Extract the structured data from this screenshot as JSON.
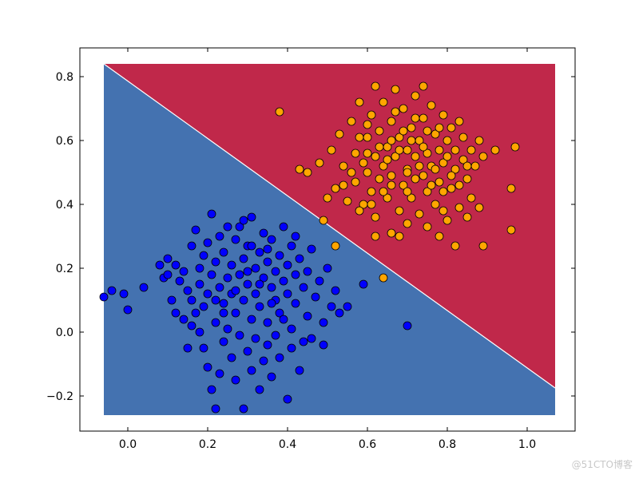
{
  "chart_data": {
    "type": "scatter",
    "title": "",
    "xlabel": "",
    "ylabel": "",
    "xlim": [
      -0.12,
      1.12
    ],
    "ylim": [
      -0.31,
      0.89
    ],
    "x_ticks": [
      0.0,
      0.2,
      0.4,
      0.6,
      0.8,
      1.0
    ],
    "x_tick_labels": [
      "0.0",
      "0.2",
      "0.4",
      "0.6",
      "0.8",
      "1.0"
    ],
    "y_ticks": [
      -0.2,
      0.0,
      0.2,
      0.4,
      0.6,
      0.8
    ],
    "y_tick_labels": [
      "−0.2",
      "0.0",
      "0.2",
      "0.4",
      "0.6",
      "0.8"
    ],
    "grid": false,
    "legend": "none",
    "decision_regions": {
      "x_range": [
        -0.06,
        1.07
      ],
      "y_range": [
        -0.26,
        0.84
      ],
      "boundary": [
        [
          -0.06,
          0.84
        ],
        [
          1.07,
          -0.175
        ]
      ],
      "upper_region_color": "#c0284a",
      "lower_region_color": "#4472b0"
    },
    "series": [
      {
        "color": "#0000ff",
        "edge_color": "#000000",
        "points": [
          [
            -0.06,
            0.11
          ],
          [
            -0.04,
            0.13
          ],
          [
            -0.01,
            0.12
          ],
          [
            0.0,
            0.07
          ],
          [
            0.04,
            0.14
          ],
          [
            0.08,
            0.21
          ],
          [
            0.09,
            0.17
          ],
          [
            0.1,
            0.23
          ],
          [
            0.1,
            0.18
          ],
          [
            0.11,
            0.1
          ],
          [
            0.12,
            0.06
          ],
          [
            0.12,
            0.21
          ],
          [
            0.13,
            0.16
          ],
          [
            0.14,
            0.04
          ],
          [
            0.14,
            0.19
          ],
          [
            0.15,
            0.13
          ],
          [
            0.16,
            0.1
          ],
          [
            0.16,
            0.27
          ],
          [
            0.17,
            0.06
          ],
          [
            0.17,
            0.32
          ],
          [
            0.18,
            0.2
          ],
          [
            0.18,
            0.15
          ],
          [
            0.19,
            0.24
          ],
          [
            0.19,
            0.08
          ],
          [
            0.2,
            0.28
          ],
          [
            0.2,
            0.12
          ],
          [
            0.21,
            0.37
          ],
          [
            0.21,
            0.18
          ],
          [
            0.22,
            0.03
          ],
          [
            0.22,
            0.22
          ],
          [
            0.23,
            0.14
          ],
          [
            0.23,
            0.3
          ],
          [
            0.24,
            0.09
          ],
          [
            0.24,
            0.25
          ],
          [
            0.25,
            0.17
          ],
          [
            0.25,
            0.01
          ],
          [
            0.26,
            0.21
          ],
          [
            0.26,
            0.12
          ],
          [
            0.27,
            0.29
          ],
          [
            0.27,
            0.06
          ],
          [
            0.28,
            0.18
          ],
          [
            0.28,
            0.33
          ],
          [
            0.29,
            0.23
          ],
          [
            0.29,
            0.1
          ],
          [
            0.3,
            0.27
          ],
          [
            0.3,
            0.15
          ],
          [
            0.31,
            0.36
          ],
          [
            0.31,
            0.04
          ],
          [
            0.32,
            0.2
          ],
          [
            0.32,
            0.12
          ],
          [
            0.33,
            0.25
          ],
          [
            0.33,
            0.08
          ],
          [
            0.34,
            0.31
          ],
          [
            0.34,
            0.17
          ],
          [
            0.35,
            0.22
          ],
          [
            0.35,
            0.03
          ],
          [
            0.36,
            0.14
          ],
          [
            0.36,
            0.29
          ],
          [
            0.37,
            0.19
          ],
          [
            0.37,
            0.1
          ],
          [
            0.38,
            0.24
          ],
          [
            0.38,
            0.06
          ],
          [
            0.39,
            0.16
          ],
          [
            0.39,
            0.33
          ],
          [
            0.4,
            0.21
          ],
          [
            0.4,
            0.12
          ],
          [
            0.41,
            0.27
          ],
          [
            0.41,
            0.01
          ],
          [
            0.42,
            0.18
          ],
          [
            0.42,
            0.09
          ],
          [
            0.43,
            0.23
          ],
          [
            0.44,
            0.14
          ],
          [
            0.45,
            0.19
          ],
          [
            0.45,
            0.05
          ],
          [
            0.46,
            0.26
          ],
          [
            0.47,
            0.11
          ],
          [
            0.48,
            0.16
          ],
          [
            0.49,
            0.03
          ],
          [
            0.5,
            0.2
          ],
          [
            0.51,
            0.08
          ],
          [
            0.52,
            0.13
          ],
          [
            0.53,
            0.06
          ],
          [
            0.55,
            0.08
          ],
          [
            0.59,
            0.15
          ],
          [
            0.7,
            0.02
          ],
          [
            0.18,
            0.0
          ],
          [
            0.19,
            -0.05
          ],
          [
            0.2,
            -0.11
          ],
          [
            0.21,
            -0.18
          ],
          [
            0.22,
            -0.24
          ],
          [
            0.23,
            -0.13
          ],
          [
            0.24,
            -0.03
          ],
          [
            0.26,
            -0.08
          ],
          [
            0.27,
            -0.15
          ],
          [
            0.28,
            -0.01
          ],
          [
            0.29,
            -0.24
          ],
          [
            0.3,
            -0.06
          ],
          [
            0.31,
            -0.12
          ],
          [
            0.32,
            -0.02
          ],
          [
            0.33,
            -0.18
          ],
          [
            0.34,
            -0.09
          ],
          [
            0.35,
            -0.04
          ],
          [
            0.36,
            -0.14
          ],
          [
            0.37,
            -0.01
          ],
          [
            0.38,
            -0.08
          ],
          [
            0.4,
            -0.21
          ],
          [
            0.41,
            -0.05
          ],
          [
            0.43,
            -0.12
          ],
          [
            0.44,
            -0.03
          ],
          [
            0.46,
            -0.02
          ],
          [
            0.49,
            -0.04
          ],
          [
            0.15,
            -0.05
          ],
          [
            0.16,
            0.02
          ],
          [
            0.24,
            0.06
          ],
          [
            0.27,
            0.13
          ],
          [
            0.3,
            0.19
          ],
          [
            0.33,
            0.15
          ],
          [
            0.36,
            0.09
          ],
          [
            0.39,
            0.04
          ],
          [
            0.25,
            0.33
          ],
          [
            0.29,
            0.35
          ],
          [
            0.31,
            0.27
          ],
          [
            0.22,
            0.1
          ],
          [
            0.35,
            0.26
          ],
          [
            0.42,
            0.3
          ]
        ]
      },
      {
        "color": "#ffa500",
        "edge_color": "#000000",
        "points": [
          [
            0.38,
            0.69
          ],
          [
            0.43,
            0.51
          ],
          [
            0.45,
            0.5
          ],
          [
            0.48,
            0.53
          ],
          [
            0.49,
            0.35
          ],
          [
            0.5,
            0.42
          ],
          [
            0.51,
            0.57
          ],
          [
            0.52,
            0.45
          ],
          [
            0.53,
            0.62
          ],
          [
            0.54,
            0.52
          ],
          [
            0.55,
            0.41
          ],
          [
            0.56,
            0.66
          ],
          [
            0.57,
            0.56
          ],
          [
            0.57,
            0.47
          ],
          [
            0.58,
            0.72
          ],
          [
            0.59,
            0.53
          ],
          [
            0.59,
            0.4
          ],
          [
            0.6,
            0.61
          ],
          [
            0.6,
            0.5
          ],
          [
            0.61,
            0.44
          ],
          [
            0.61,
            0.68
          ],
          [
            0.62,
            0.55
          ],
          [
            0.62,
            0.36
          ],
          [
            0.63,
            0.63
          ],
          [
            0.63,
            0.48
          ],
          [
            0.64,
            0.72
          ],
          [
            0.64,
            0.52
          ],
          [
            0.65,
            0.58
          ],
          [
            0.65,
            0.42
          ],
          [
            0.66,
            0.66
          ],
          [
            0.66,
            0.49
          ],
          [
            0.67,
            0.76
          ],
          [
            0.67,
            0.55
          ],
          [
            0.68,
            0.61
          ],
          [
            0.68,
            0.38
          ],
          [
            0.69,
            0.7
          ],
          [
            0.69,
            0.46
          ],
          [
            0.7,
            0.57
          ],
          [
            0.7,
            0.51
          ],
          [
            0.71,
            0.64
          ],
          [
            0.71,
            0.42
          ],
          [
            0.72,
            0.74
          ],
          [
            0.72,
            0.55
          ],
          [
            0.73,
            0.6
          ],
          [
            0.73,
            0.37
          ],
          [
            0.74,
            0.67
          ],
          [
            0.74,
            0.49
          ],
          [
            0.75,
            0.56
          ],
          [
            0.75,
            0.44
          ],
          [
            0.76,
            0.71
          ],
          [
            0.76,
            0.52
          ],
          [
            0.77,
            0.62
          ],
          [
            0.77,
            0.4
          ],
          [
            0.78,
            0.57
          ],
          [
            0.78,
            0.47
          ],
          [
            0.79,
            0.68
          ],
          [
            0.79,
            0.53
          ],
          [
            0.8,
            0.6
          ],
          [
            0.8,
            0.35
          ],
          [
            0.81,
            0.64
          ],
          [
            0.81,
            0.45
          ],
          [
            0.82,
            0.57
          ],
          [
            0.82,
            0.51
          ],
          [
            0.83,
            0.66
          ],
          [
            0.83,
            0.39
          ],
          [
            0.84,
            0.54
          ],
          [
            0.84,
            0.61
          ],
          [
            0.85,
            0.48
          ],
          [
            0.86,
            0.57
          ],
          [
            0.86,
            0.42
          ],
          [
            0.87,
            0.52
          ],
          [
            0.88,
            0.6
          ],
          [
            0.88,
            0.39
          ],
          [
            0.89,
            0.55
          ],
          [
            0.89,
            0.27
          ],
          [
            0.92,
            0.57
          ],
          [
            0.96,
            0.45
          ],
          [
            0.96,
            0.32
          ],
          [
            0.97,
            0.58
          ],
          [
            0.52,
            0.27
          ],
          [
            0.64,
            0.17
          ],
          [
            0.62,
            0.3
          ],
          [
            0.66,
            0.31
          ],
          [
            0.68,
            0.3
          ],
          [
            0.7,
            0.34
          ],
          [
            0.75,
            0.33
          ],
          [
            0.78,
            0.3
          ],
          [
            0.79,
            0.38
          ],
          [
            0.82,
            0.27
          ],
          [
            0.85,
            0.36
          ],
          [
            0.58,
            0.38
          ],
          [
            0.6,
            0.65
          ],
          [
            0.63,
            0.58
          ],
          [
            0.66,
            0.46
          ],
          [
            0.69,
            0.63
          ],
          [
            0.72,
            0.48
          ],
          [
            0.75,
            0.63
          ],
          [
            0.77,
            0.51
          ],
          [
            0.8,
            0.55
          ],
          [
            0.83,
            0.46
          ],
          [
            0.56,
            0.5
          ],
          [
            0.61,
            0.4
          ],
          [
            0.65,
            0.54
          ],
          [
            0.7,
            0.44
          ],
          [
            0.74,
            0.58
          ],
          [
            0.78,
            0.64
          ],
          [
            0.62,
            0.77
          ],
          [
            0.67,
            0.69
          ],
          [
            0.72,
            0.67
          ],
          [
            0.76,
            0.46
          ],
          [
            0.58,
            0.61
          ],
          [
            0.64,
            0.44
          ],
          [
            0.68,
            0.57
          ],
          [
            0.73,
            0.52
          ],
          [
            0.81,
            0.49
          ],
          [
            0.54,
            0.46
          ],
          [
            0.6,
            0.56
          ],
          [
            0.71,
            0.6
          ],
          [
            0.79,
            0.44
          ],
          [
            0.85,
            0.52
          ],
          [
            0.74,
            0.77
          ],
          [
            0.7,
            0.5
          ],
          [
            0.66,
            0.6
          ]
        ]
      }
    ]
  },
  "watermark": "@51CTO博客"
}
